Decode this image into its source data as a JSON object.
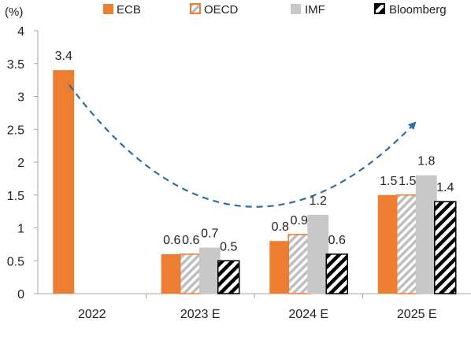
{
  "chart_data": {
    "type": "bar",
    "unit_label": "(%)",
    "categories": [
      "2022",
      "2023 E",
      "2024 E",
      "2025 E"
    ],
    "ylim": [
      0,
      4
    ],
    "yticks": [
      "0",
      "0.5",
      "1",
      "1.5",
      "2",
      "2.5",
      "3",
      "3.5",
      "4"
    ],
    "legend_position": "top",
    "grid": false,
    "series": [
      {
        "name": "ECB",
        "values": [
          3.4,
          0.6,
          0.8,
          1.5
        ],
        "labels": [
          "3.4",
          "0.6",
          "0.8",
          "1.5"
        ],
        "color": "#ED7D31",
        "pattern": "solid"
      },
      {
        "name": "OECD",
        "values": [
          null,
          0.6,
          0.9,
          1.5
        ],
        "labels": [
          "",
          "0.6",
          "0.9",
          "1.5"
        ],
        "color": "#ED7D31",
        "pattern": "diagonal-gray"
      },
      {
        "name": "IMF",
        "values": [
          null,
          0.7,
          1.2,
          1.8
        ],
        "labels": [
          "",
          "0.7",
          "1.2",
          "1.8"
        ],
        "color": "#C8C8C8",
        "pattern": "solid"
      },
      {
        "name": "Bloomberg",
        "values": [
          null,
          0.5,
          0.6,
          1.4
        ],
        "labels": [
          "",
          "0.5",
          "0.6",
          "1.4"
        ],
        "color": "#000000",
        "pattern": "diagonal-black"
      }
    ],
    "trend_arrow": {
      "style": "dashed",
      "color": "#2E6DA4"
    }
  }
}
